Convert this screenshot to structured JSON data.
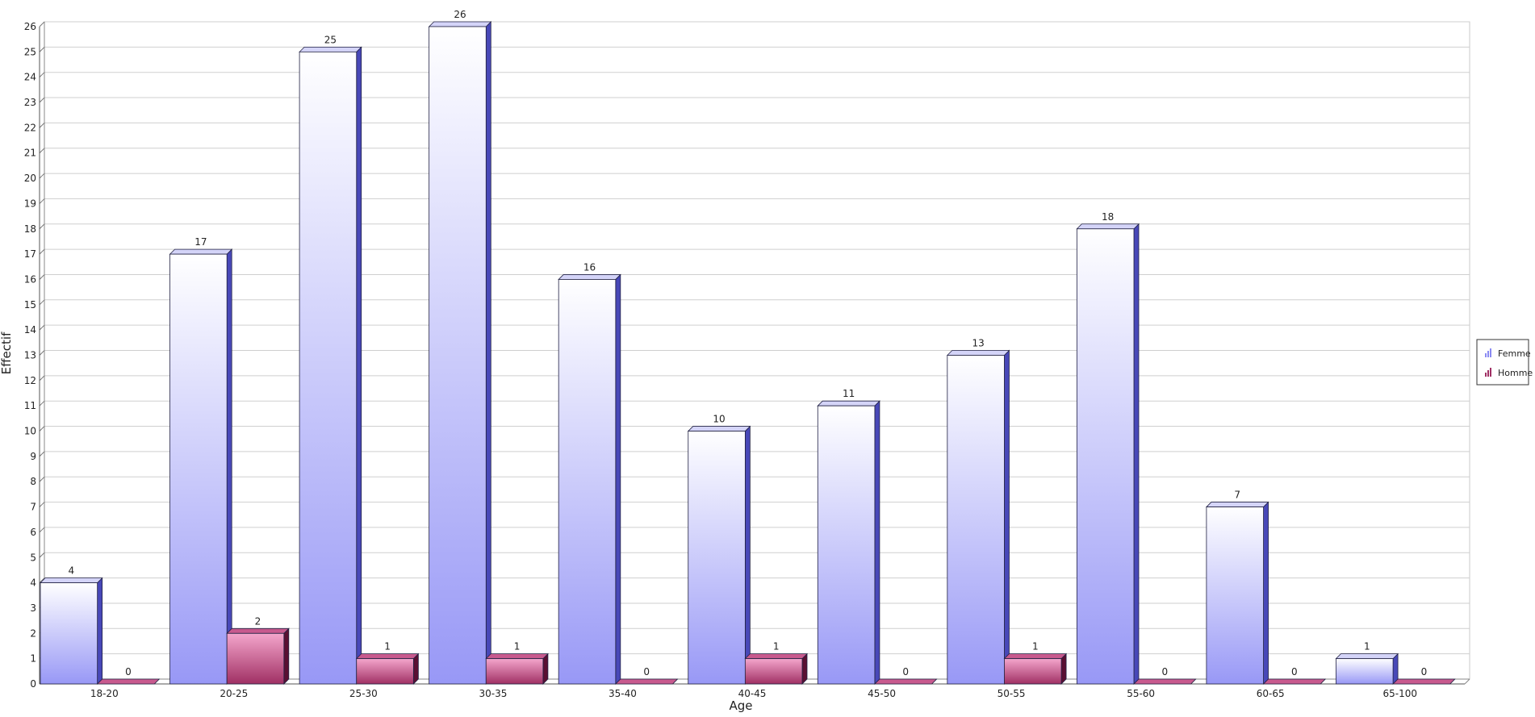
{
  "chart_data": {
    "type": "bar",
    "style": "3d-clustered",
    "xlabel": "Age",
    "ylabel": "Effectif",
    "ylim": [
      0,
      26
    ],
    "ytick_step": 1,
    "grid": true,
    "legend_position": "right",
    "categories": [
      "18-20",
      "20-25",
      "25-30",
      "30-35",
      "35-40",
      "40-45",
      "45-50",
      "50-55",
      "55-60",
      "60-65",
      "65-100"
    ],
    "series": [
      {
        "name": "Femme",
        "values": [
          4,
          17,
          25,
          26,
          16,
          10,
          11,
          13,
          18,
          7,
          1
        ],
        "color_top": "#ffffff",
        "color_bottom": "#9898f6",
        "color_side": "#4848b8",
        "color_cap": "#d4d4f8"
      },
      {
        "name": "Homme",
        "values": [
          0,
          2,
          1,
          1,
          0,
          1,
          0,
          1,
          0,
          0,
          0
        ],
        "color_top": "#f4a6cc",
        "color_bottom": "#a03064",
        "color_side": "#5a0f32",
        "color_cap": "#c85a8e"
      }
    ]
  }
}
